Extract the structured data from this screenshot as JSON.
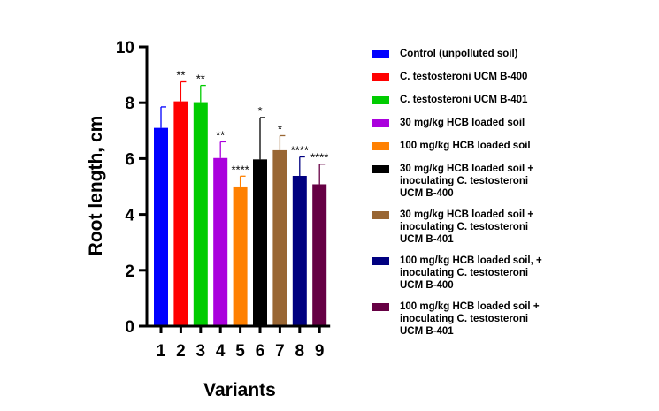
{
  "chart_data": {
    "type": "bar",
    "xlabel": "Variants",
    "ylabel": "Root length, cm",
    "ylim": [
      0,
      10
    ],
    "yticks": [
      "0",
      "2",
      "4",
      "6",
      "8",
      "10"
    ],
    "categories": [
      "1",
      "2",
      "3",
      "4",
      "5",
      "6",
      "7",
      "8",
      "9"
    ],
    "values": [
      7.1,
      8.05,
      8.02,
      6.02,
      4.97,
      5.97,
      6.3,
      5.38,
      5.08
    ],
    "errors": [
      0.75,
      0.7,
      0.6,
      0.58,
      0.4,
      1.5,
      0.52,
      0.68,
      0.72
    ],
    "significance": [
      "",
      "**",
      "**",
      "**",
      "****",
      "*",
      "*",
      "****",
      "****"
    ],
    "colors": [
      "#0000ff",
      "#ff0000",
      "#00cc00",
      "#aa00dd",
      "#ff8000",
      "#000000",
      "#996633",
      "#000080",
      "#660044"
    ],
    "legend": [
      "Control (unpolluted soil)",
      "C. testosteroni UCM B-400",
      "C. testosteroni UCM B-401",
      "30 mg/kg HCB loaded soil",
      "100 mg/kg HCB loaded soil",
      "30 mg/kg HCB loaded soil +\ninoculating C. testosteroni\nUCM B-400",
      "30 mg/kg HCB loaded soil +\ninoculating C. testosteroni\nUCM B-401",
      "100 mg/kg HCB loaded soil, +\ninoculating C. testosteroni\nUCM B-400",
      "100 mg/kg HCB loaded soil +\ninoculating C. testosteroni\nUCM B-401"
    ],
    "legend_position": "right",
    "grid": false
  }
}
